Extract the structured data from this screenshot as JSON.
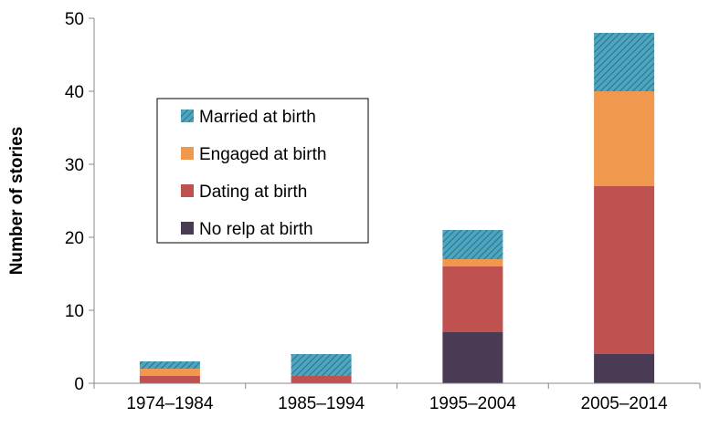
{
  "chart_data": {
    "type": "bar",
    "stacked": true,
    "categories": [
      "1974–1984",
      "1985–1994",
      "1995–2004",
      "2005–2014"
    ],
    "series": [
      {
        "name": "No relp at birth",
        "values": [
          0,
          0,
          7,
          4
        ],
        "color": "#4a3b55",
        "pattern": "solid"
      },
      {
        "name": "Dating at birth",
        "values": [
          1,
          1,
          9,
          23
        ],
        "color": "#bf5250",
        "pattern": "solid"
      },
      {
        "name": "Engaged at birth",
        "values": [
          1,
          0,
          1,
          13
        ],
        "color": "#f0984e",
        "pattern": "solid"
      },
      {
        "name": "Married at birth",
        "values": [
          1,
          3,
          4,
          8
        ],
        "color": "#4ba6c2",
        "pattern": "hatched"
      }
    ],
    "legend_order": [
      "Married at birth",
      "Engaged at birth",
      "Dating at birth",
      "No relp at birth"
    ],
    "title": "",
    "xlabel": "",
    "ylabel": "Number of stories",
    "ylim": [
      0,
      50
    ],
    "yticks": [
      0,
      10,
      20,
      30,
      40,
      50
    ],
    "grid": false,
    "legend_position": "upper-left inside plot"
  }
}
